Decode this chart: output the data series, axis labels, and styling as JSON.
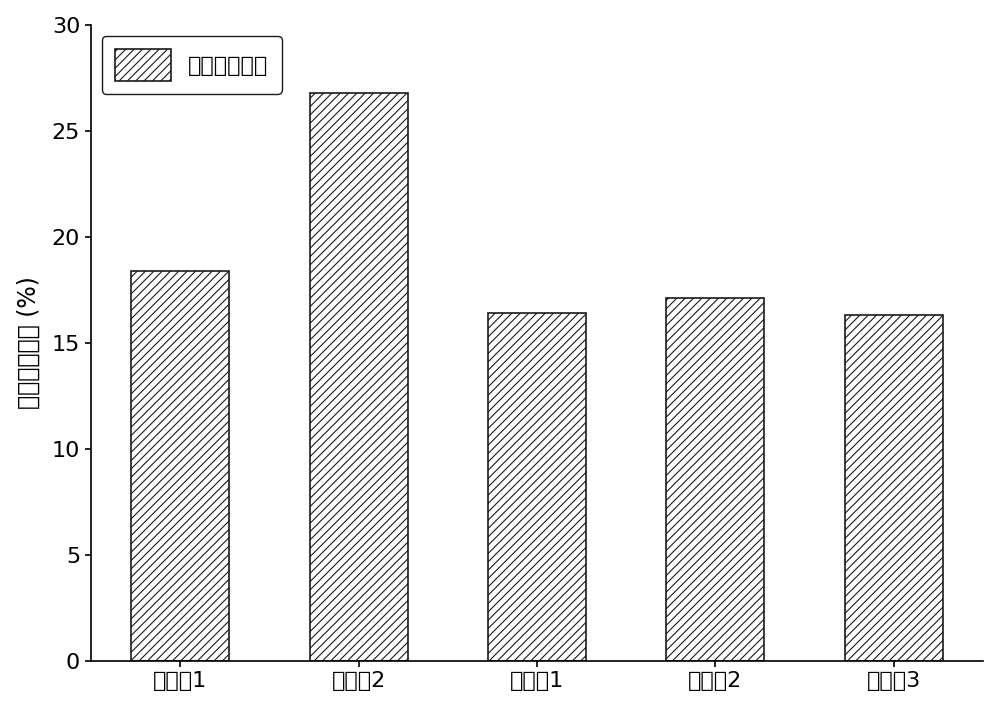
{
  "categories": [
    "实施例1",
    "实施例2",
    "对比例1",
    "对比例2",
    "对比例3"
  ],
  "values": [
    18.4,
    26.8,
    16.4,
    17.1,
    16.3
  ],
  "ylabel": "硫酸根保有量 (%)",
  "ylim": [
    0,
    30
  ],
  "yticks": [
    0,
    5,
    10,
    15,
    20,
    25,
    30
  ],
  "legend_label": "硫酸根保有量",
  "bar_color": "white",
  "bar_edgecolor": "#1a1a1a",
  "hatch": "////",
  "hatch_color": "#555555",
  "background_color": "#ffffff",
  "label_fontsize": 17,
  "tick_fontsize": 16,
  "legend_fontsize": 16,
  "bar_width": 0.55
}
